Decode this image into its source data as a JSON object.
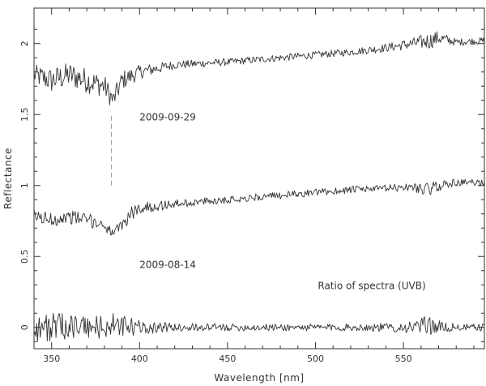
{
  "chart_data": {
    "type": "line",
    "xlabel": "Wavelength [nm]",
    "ylabel": "Reflectance",
    "xlim": [
      340,
      596
    ],
    "ylim": [
      -0.15,
      2.25
    ],
    "x_ticks": [
      350,
      400,
      450,
      500,
      550
    ],
    "y_ticks": [
      0,
      0.5,
      1,
      1.5,
      2
    ],
    "y_tick_labels": [
      "0",
      "0.5",
      "1",
      "1.5",
      "2"
    ],
    "grid": false,
    "colors": {
      "line": "#333333",
      "marker": "#999999"
    },
    "series": [
      {
        "key": "top",
        "x": [
          340,
          350,
          360,
          370,
          380,
          385,
          390,
          400,
          420,
          450,
          480,
          500,
          520,
          540,
          555,
          565,
          570,
          580,
          596
        ],
        "y": [
          1.78,
          1.74,
          1.78,
          1.74,
          1.7,
          1.6,
          1.74,
          1.8,
          1.85,
          1.87,
          1.9,
          1.92,
          1.94,
          1.97,
          2.0,
          2.02,
          2.04,
          2.01,
          2.02
        ],
        "noise": [
          0.07,
          0.09,
          0.09,
          0.09,
          0.08,
          0.07,
          0.07,
          0.05,
          0.03,
          0.025,
          0.025,
          0.025,
          0.025,
          0.03,
          0.04,
          0.06,
          0.05,
          0.025,
          0.025
        ]
      },
      {
        "key": "middle",
        "x": [
          340,
          350,
          360,
          370,
          380,
          385,
          390,
          395,
          400,
          420,
          450,
          480,
          500,
          520,
          540,
          555,
          565,
          570,
          580,
          596
        ],
        "y": [
          0.78,
          0.76,
          0.78,
          0.76,
          0.72,
          0.66,
          0.72,
          0.8,
          0.84,
          0.87,
          0.9,
          0.93,
          0.95,
          0.97,
          0.98,
          0.99,
          0.97,
          1.0,
          1.02,
          1.02
        ],
        "noise": [
          0.05,
          0.05,
          0.05,
          0.05,
          0.04,
          0.03,
          0.04,
          0.05,
          0.04,
          0.03,
          0.025,
          0.025,
          0.025,
          0.025,
          0.025,
          0.03,
          0.05,
          0.04,
          0.025,
          0.025
        ]
      },
      {
        "key": "ratio",
        "x": [
          340,
          350,
          360,
          370,
          380,
          385,
          390,
          400,
          420,
          450,
          480,
          500,
          520,
          540,
          555,
          565,
          570,
          580,
          596
        ],
        "y": [
          0.0,
          0.0,
          0.01,
          0.0,
          0.0,
          0.02,
          0.0,
          0.0,
          0.0,
          0.0,
          0.0,
          0.0,
          0.0,
          0.0,
          0.0,
          0.02,
          0.0,
          0.0,
          0.0
        ],
        "noise": [
          0.11,
          0.1,
          0.09,
          0.09,
          0.09,
          0.08,
          0.09,
          0.05,
          0.03,
          0.025,
          0.025,
          0.025,
          0.025,
          0.03,
          0.04,
          0.07,
          0.05,
          0.025,
          0.025
        ]
      }
    ],
    "marker_line": {
      "x": 384,
      "y": [
        1.0,
        1.5
      ]
    },
    "annotations": [
      {
        "text": "2009-09-29",
        "x": 416,
        "y": 1.46
      },
      {
        "text": "2009-08-14",
        "x": 416,
        "y": 0.42
      },
      {
        "text": "Ratio of spectra (UVB)",
        "x": 532,
        "y": 0.27
      }
    ]
  }
}
